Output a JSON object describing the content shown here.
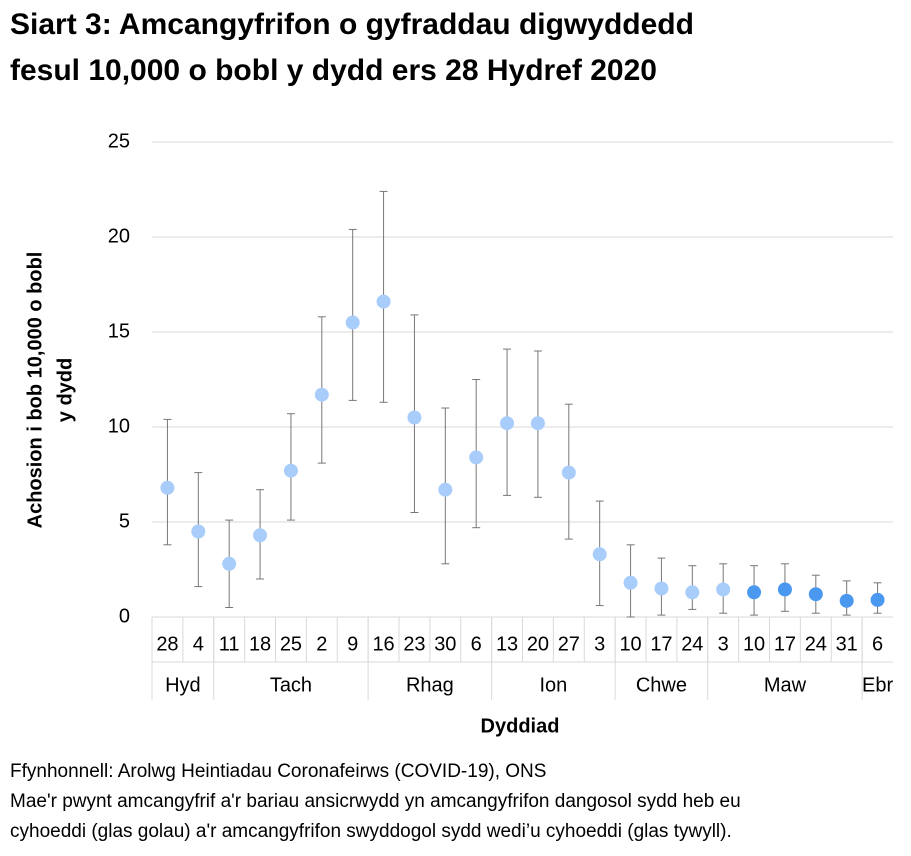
{
  "chart_data": {
    "type": "scatter",
    "title": [
      "Siart 3: Amcangyfrifon o gyfraddau digwyddedd",
      "fesul 10,000 o bobl y dydd ers 28 Hydref 2020"
    ],
    "y_label": [
      "Achosion i bob 10,000 o bobl",
      "y dydd"
    ],
    "x_label": "Dyddiad",
    "categories": [
      "28",
      "4",
      "11",
      "18",
      "25",
      "2",
      "9",
      "16",
      "23",
      "30",
      "6",
      "13",
      "20",
      "27",
      "3",
      "10",
      "17",
      "24",
      "3",
      "10",
      "17",
      "24",
      "31",
      "6"
    ],
    "groups": [
      {
        "name": "Hyd",
        "span": 2
      },
      {
        "name": "Tach",
        "span": 5
      },
      {
        "name": "Rhag",
        "span": 4
      },
      {
        "name": "Ion",
        "span": 4
      },
      {
        "name": "Chwe",
        "span": 3
      },
      {
        "name": "Maw",
        "span": 5
      },
      {
        "name": "Ebr",
        "span": 1
      }
    ],
    "values": [
      6.8,
      4.5,
      2.8,
      4.3,
      7.7,
      11.7,
      15.5,
      16.6,
      10.5,
      6.7,
      8.4,
      10.2,
      10.2,
      7.6,
      3.3,
      1.8,
      1.5,
      1.3,
      1.45,
      1.3,
      1.45,
      1.2,
      0.85,
      0.9
    ],
    "lower": [
      3.8,
      1.6,
      0.5,
      2.0,
      5.1,
      8.1,
      11.4,
      11.3,
      5.5,
      2.8,
      4.7,
      6.4,
      6.3,
      4.1,
      0.6,
      0.0,
      0.1,
      0.4,
      0.2,
      0.1,
      0.3,
      0.2,
      0.1,
      0.2
    ],
    "upper": [
      10.4,
      7.6,
      5.1,
      6.7,
      10.7,
      15.8,
      20.4,
      22.4,
      15.9,
      11.0,
      12.5,
      14.1,
      14.0,
      11.2,
      6.1,
      3.8,
      3.1,
      2.7,
      2.8,
      2.7,
      2.8,
      2.2,
      1.9,
      1.8
    ],
    "colors": [
      "#a9cdfb",
      "#a9cdfb",
      "#a9cdfb",
      "#a9cdfb",
      "#a9cdfb",
      "#a9cdfb",
      "#a9cdfb",
      "#a9cdfb",
      "#a9cdfb",
      "#a9cdfb",
      "#a9cdfb",
      "#a9cdfb",
      "#a9cdfb",
      "#a9cdfb",
      "#a9cdfb",
      "#a9cdfb",
      "#a9cdfb",
      "#a9cdfb",
      "#a9cdfb",
      "#4a98f0",
      "#4a98f0",
      "#4a98f0",
      "#4a98f0",
      "#4a98f0"
    ],
    "ylim": [
      0,
      25
    ],
    "yticks": [
      0,
      5,
      10,
      15,
      20,
      25
    ],
    "grid": true,
    "notes": [
      "Ffynhonnell: Arolwg Heintiadau Coronafeirws (COVID-19), ONS",
      "Mae'r pwynt amcangyfrif a'r bariau ansicrwydd yn amcangyfrifon dangosol sydd heb eu",
      "cyhoeddi (glas golau) a'r amcangyfrifon swyddogol sydd wedi’u cyhoeddi (glas tywyll)."
    ]
  }
}
